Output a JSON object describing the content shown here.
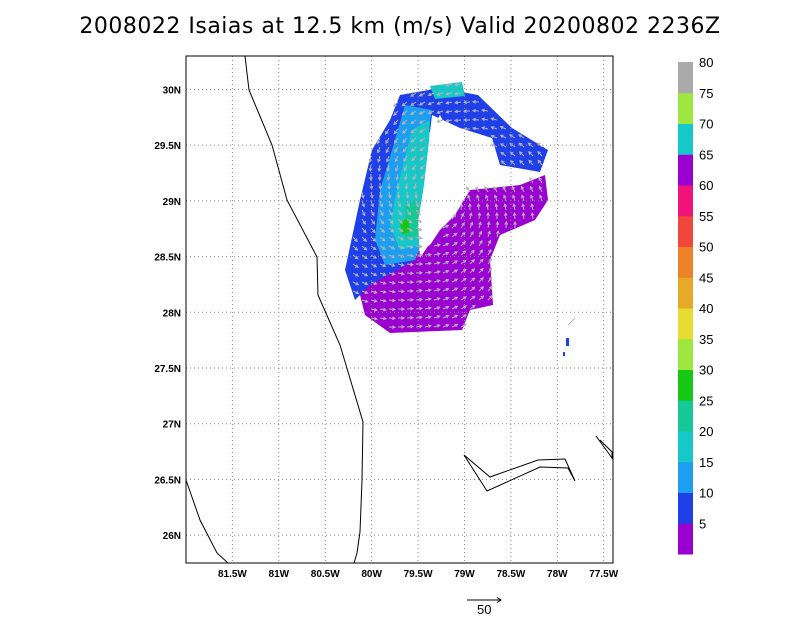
{
  "title": "2008022 Isaias at 12.5 km (m/s) Valid 20200802 2236Z",
  "map": {
    "lon_range": [
      -82.0,
      -77.4
    ],
    "lat_range": [
      25.75,
      30.3
    ],
    "x_ticks": [
      {
        "lon": -81.5,
        "label": "81.5W"
      },
      {
        "lon": -81.0,
        "label": "81W"
      },
      {
        "lon": -80.5,
        "label": "80.5W"
      },
      {
        "lon": -80.0,
        "label": "80W"
      },
      {
        "lon": -79.5,
        "label": "79.5W"
      },
      {
        "lon": -79.0,
        "label": "79W"
      },
      {
        "lon": -78.5,
        "label": "78.5W"
      },
      {
        "lon": -78.0,
        "label": "78W"
      },
      {
        "lon": -77.5,
        "label": "77.5W"
      }
    ],
    "y_ticks": [
      {
        "lat": 30.0,
        "label": "30N"
      },
      {
        "lat": 29.5,
        "label": "29.5N"
      },
      {
        "lat": 29.0,
        "label": "29N"
      },
      {
        "lat": 28.5,
        "label": "28.5N"
      },
      {
        "lat": 28.0,
        "label": "28N"
      },
      {
        "lat": 27.5,
        "label": "27.5N"
      },
      {
        "lat": 27.0,
        "label": "27N"
      },
      {
        "lat": 26.5,
        "label": "26.5N"
      },
      {
        "lat": 26.0,
        "label": "26N"
      }
    ],
    "grid": "dotted"
  },
  "colorbar": {
    "labels": [
      "5",
      "10",
      "15",
      "20",
      "25",
      "30",
      "35",
      "40",
      "45",
      "50",
      "55",
      "60",
      "65",
      "70",
      "75",
      "80"
    ],
    "colors": [
      "#9a00d0",
      "#1f3fe8",
      "#1c9ff0",
      "#16c8c8",
      "#16c896",
      "#16c816",
      "#a0e640",
      "#e6dc32",
      "#e6aa28",
      "#ee8228",
      "#f0463c",
      "#f0147a",
      "#9a00d0",
      "#16c8c8",
      "#a0e640",
      "#aaaaaa"
    ]
  },
  "legend_vector": {
    "label": "50"
  }
}
